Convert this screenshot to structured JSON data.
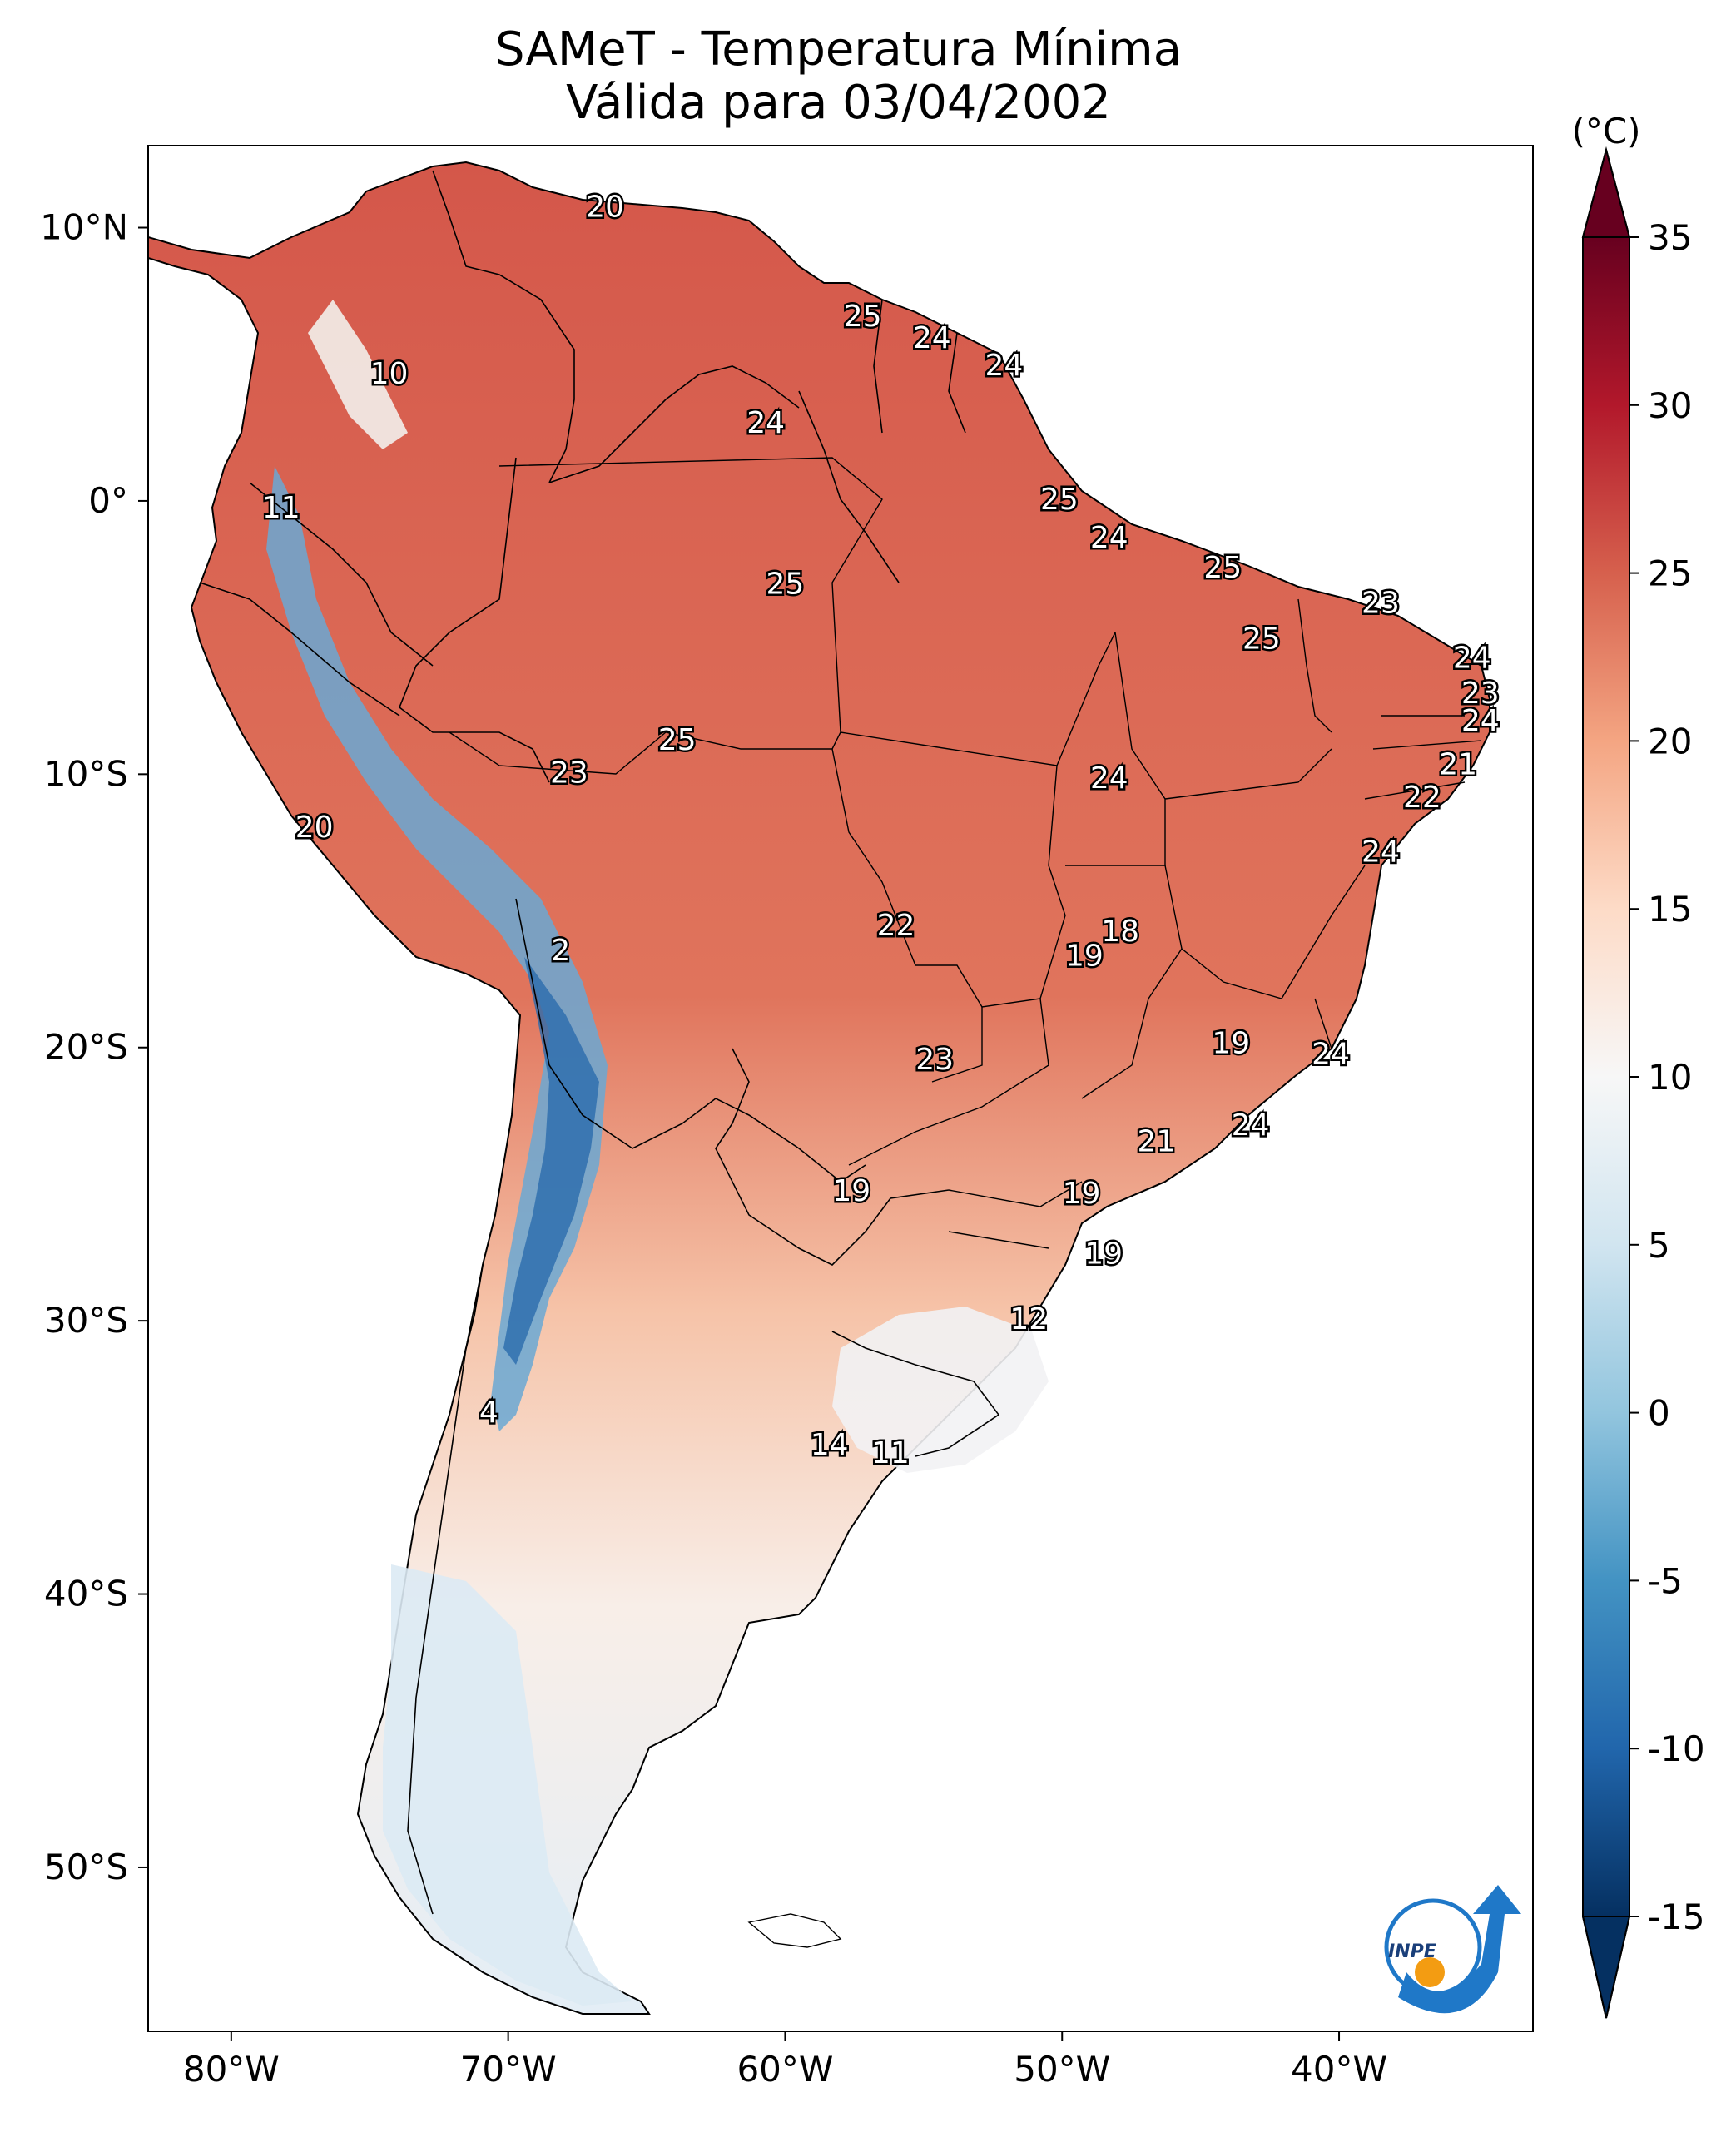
{
  "title": {
    "line1": "SAMeT - Temperatura Mínima",
    "line2": "Válida para 03/04/2002"
  },
  "map": {
    "lon_range": [
      -83,
      -33
    ],
    "lat_range": [
      -56,
      13
    ],
    "longitude_ticks": [
      {
        "value": -80,
        "label": "80°W"
      },
      {
        "value": -70,
        "label": "70°W"
      },
      {
        "value": -60,
        "label": "60°W"
      },
      {
        "value": -50,
        "label": "50°W"
      },
      {
        "value": -40,
        "label": "40°W"
      }
    ],
    "latitude_ticks": [
      {
        "value": 10,
        "label": "10°N"
      },
      {
        "value": 0,
        "label": "0°"
      },
      {
        "value": -10,
        "label": "10°S"
      },
      {
        "value": -20,
        "label": "20°S"
      },
      {
        "value": -30,
        "label": "30°S"
      },
      {
        "value": -40,
        "label": "40°S"
      },
      {
        "value": -50,
        "label": "50°S"
      }
    ],
    "station_values": [
      {
        "lon": -66.5,
        "lat": 10.7,
        "value": "20"
      },
      {
        "lon": -57.2,
        "lat": 6.7,
        "value": "25"
      },
      {
        "lon": -54.7,
        "lat": 5.9,
        "value": "24"
      },
      {
        "lon": -52.1,
        "lat": 4.9,
        "value": "24"
      },
      {
        "lon": -74.3,
        "lat": 4.6,
        "value": "10"
      },
      {
        "lon": -60.7,
        "lat": 2.8,
        "value": "24"
      },
      {
        "lon": -50.1,
        "lat": 0.0,
        "value": "25"
      },
      {
        "lon": -78.2,
        "lat": -0.3,
        "value": "11"
      },
      {
        "lon": -48.3,
        "lat": -1.4,
        "value": "24"
      },
      {
        "lon": -44.2,
        "lat": -2.5,
        "value": "25"
      },
      {
        "lon": -60.0,
        "lat": -3.1,
        "value": "25"
      },
      {
        "lon": -38.5,
        "lat": -3.8,
        "value": "23"
      },
      {
        "lon": -42.8,
        "lat": -5.1,
        "value": "25"
      },
      {
        "lon": -35.2,
        "lat": -5.8,
        "value": "24"
      },
      {
        "lon": -34.9,
        "lat": -7.1,
        "value": "23"
      },
      {
        "lon": -34.9,
        "lat": -8.1,
        "value": "24"
      },
      {
        "lon": -63.9,
        "lat": -8.8,
        "value": "25"
      },
      {
        "lon": -35.7,
        "lat": -9.7,
        "value": "21"
      },
      {
        "lon": -67.8,
        "lat": -10.0,
        "value": "23"
      },
      {
        "lon": -48.3,
        "lat": -10.2,
        "value": "24"
      },
      {
        "lon": -37.0,
        "lat": -10.9,
        "value": "22"
      },
      {
        "lon": -77.0,
        "lat": -12.0,
        "value": "20"
      },
      {
        "lon": -38.5,
        "lat": -12.9,
        "value": "24"
      },
      {
        "lon": -56.0,
        "lat": -15.6,
        "value": "22"
      },
      {
        "lon": -47.9,
        "lat": -15.8,
        "value": "18"
      },
      {
        "lon": -49.2,
        "lat": -16.7,
        "value": "19"
      },
      {
        "lon": -68.1,
        "lat": -16.5,
        "value": "2"
      },
      {
        "lon": -43.9,
        "lat": -19.9,
        "value": "19"
      },
      {
        "lon": -40.3,
        "lat": -20.3,
        "value": "24"
      },
      {
        "lon": -54.6,
        "lat": -20.5,
        "value": "23"
      },
      {
        "lon": -43.2,
        "lat": -22.9,
        "value": "24"
      },
      {
        "lon": -46.6,
        "lat": -23.5,
        "value": "21"
      },
      {
        "lon": -57.6,
        "lat": -25.3,
        "value": "19"
      },
      {
        "lon": -49.3,
        "lat": -25.4,
        "value": "19"
      },
      {
        "lon": -48.5,
        "lat": -27.6,
        "value": "19"
      },
      {
        "lon": -51.2,
        "lat": -30.0,
        "value": "12"
      },
      {
        "lon": -70.7,
        "lat": -33.4,
        "value": "4"
      },
      {
        "lon": -58.4,
        "lat": -34.6,
        "value": "14"
      },
      {
        "lon": -56.2,
        "lat": -34.9,
        "value": "11"
      }
    ]
  },
  "colorbar": {
    "unit": "(°C)",
    "min": -15,
    "max": 35,
    "tick_labels": [
      "35",
      "30",
      "25",
      "20",
      "15",
      "10",
      "5",
      "0",
      "-5",
      "-10",
      "-15"
    ],
    "tick_values": [
      35,
      30,
      25,
      20,
      15,
      10,
      5,
      0,
      -5,
      -10,
      -15
    ],
    "colors": [
      "#053061",
      "#2166ac",
      "#4393c3",
      "#92c5de",
      "#d1e5f0",
      "#f7f7f7",
      "#fddbc7",
      "#f4a582",
      "#d6604d",
      "#b2182b",
      "#67001f"
    ]
  },
  "logo": {
    "text": "INPE",
    "colors": {
      "blue": "#1f78c8",
      "orange": "#f39c12"
    }
  }
}
